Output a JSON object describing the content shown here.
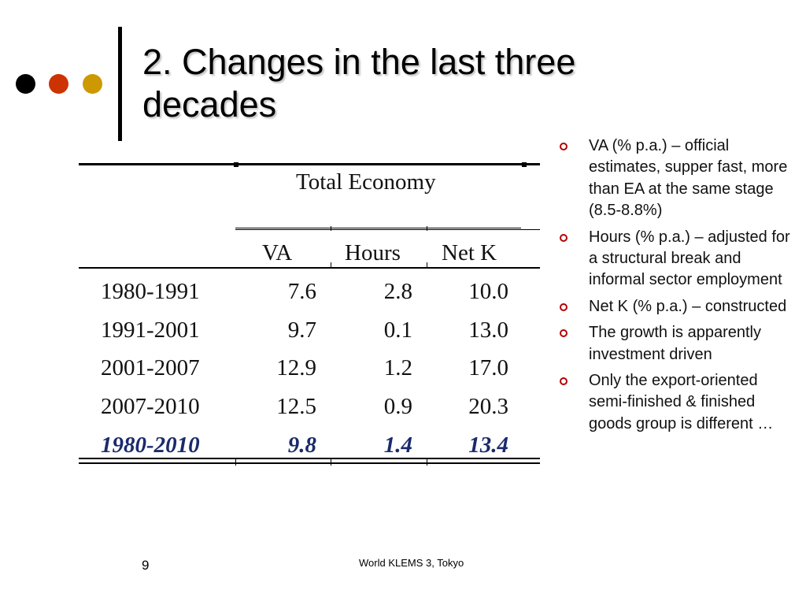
{
  "slide": {
    "title": "2. Changes in the last three decades",
    "page_number": "9",
    "footer": "World KLEMS 3, Tokyo"
  },
  "colors": {
    "dot1": "#000000",
    "dot2": "#cc3300",
    "dot3": "#cc9900",
    "bullet": "#b30000"
  },
  "table": {
    "group_header": "Total Economy",
    "columns": [
      "VA",
      "Hours",
      "Net K"
    ],
    "rows": [
      {
        "period": "1980-1991",
        "va": "7.6",
        "hours": "2.8",
        "netk": "10.0"
      },
      {
        "period": "1991-2001",
        "va": "9.7",
        "hours": "0.1",
        "netk": "13.0"
      },
      {
        "period": "2001-2007",
        "va": "12.9",
        "hours": "1.2",
        "netk": "17.0"
      },
      {
        "period": "2007-2010",
        "va": "12.5",
        "hours": "0.9",
        "netk": "20.3"
      }
    ],
    "total": {
      "period": "1980-2010",
      "va": "9.8",
      "hours": "1.4",
      "netk": "13.4"
    }
  },
  "bullets": [
    "VA (% p.a.) – official estimates, supper fast, more than EA at the same stage (8.5-8.8%)",
    "Hours (% p.a.) – adjusted for a structural break and informal sector employment",
    "Net K (% p.a.) – constructed",
    "The growth is apparently investment driven",
    "Only the export-oriented semi-finished & finished goods group is different …"
  ]
}
